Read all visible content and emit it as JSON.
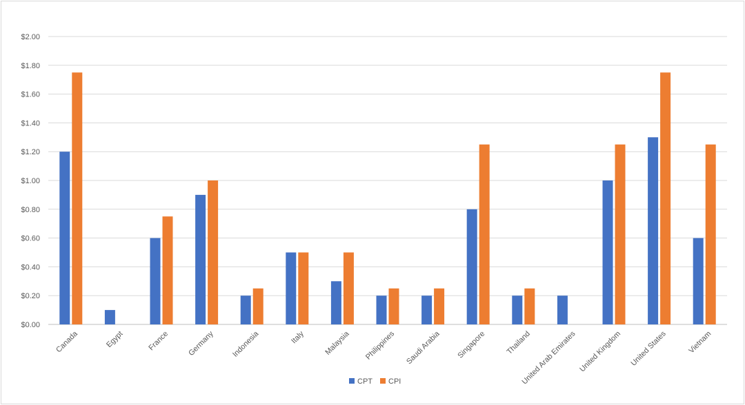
{
  "chart_data": {
    "type": "bar",
    "title": "",
    "xlabel": "",
    "ylabel": "",
    "ylim": [
      0,
      2.0
    ],
    "y_ticks": [
      "$0.00",
      "$0.20",
      "$0.40",
      "$0.60",
      "$0.80",
      "$1.00",
      "$1.20",
      "$1.40",
      "$1.60",
      "$1.80",
      "$2.00"
    ],
    "grid": true,
    "legend_position": "bottom-center",
    "categories": [
      "Canada",
      "Egypt",
      "France",
      "Germany",
      "Indonesia",
      "Italy",
      "Malaysia",
      "Philippines",
      "Saudi Arabia",
      "Singapore",
      "Thailand",
      "United Arab Emirates",
      "United Kingdom",
      "United States",
      "Vietnam"
    ],
    "series": [
      {
        "name": "CPT",
        "color": "#4472c4",
        "values": [
          1.2,
          0.1,
          0.6,
          0.9,
          0.2,
          0.5,
          0.3,
          0.2,
          0.2,
          0.8,
          0.2,
          0.2,
          1.0,
          1.3,
          0.6
        ]
      },
      {
        "name": "CPI",
        "color": "#ed7d31",
        "values": [
          1.75,
          null,
          0.75,
          1.0,
          0.25,
          0.5,
          0.5,
          0.25,
          0.25,
          1.25,
          0.25,
          null,
          1.25,
          1.75,
          1.25
        ]
      }
    ]
  }
}
